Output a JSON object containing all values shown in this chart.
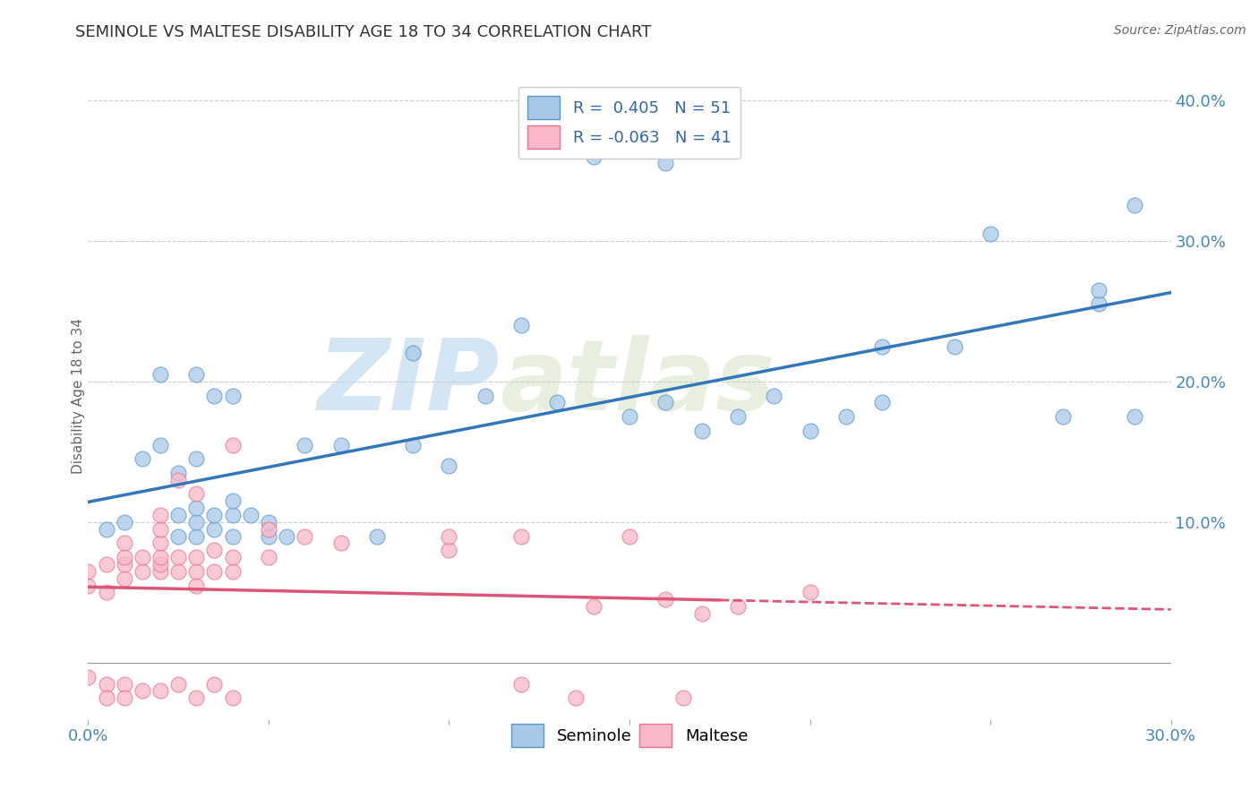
{
  "title": "SEMINOLE VS MALTESE DISABILITY AGE 18 TO 34 CORRELATION CHART",
  "source_text": "Source: ZipAtlas.com",
  "ylabel": "Disability Age 18 to 34",
  "xlim": [
    0.0,
    0.3
  ],
  "ylim": [
    -0.04,
    0.42
  ],
  "x_ticks": [
    0.0,
    0.05,
    0.1,
    0.15,
    0.2,
    0.25,
    0.3
  ],
  "x_tick_labels": [
    "0.0%",
    "",
    "",
    "",
    "",
    "",
    "30.0%"
  ],
  "y_ticks_right": [
    0.1,
    0.2,
    0.3,
    0.4
  ],
  "y_tick_labels_right": [
    "10.0%",
    "20.0%",
    "30.0%",
    "40.0%"
  ],
  "seminole_color": "#a8c8e8",
  "seminole_edge": "#5599cc",
  "maltese_color": "#f8b8c8",
  "maltese_edge": "#e87090",
  "seminole_R": 0.405,
  "seminole_N": 51,
  "maltese_R": -0.063,
  "maltese_N": 41,
  "trend_seminole_color": "#3377bb",
  "trend_maltese_color": "#dd5577",
  "grid_color": "#cccccc",
  "background_color": "#ffffff",
  "watermark_zip": "ZIP",
  "watermark_atlas": "atlas",
  "seminole_x": [
    0.005,
    0.01,
    0.015,
    0.02,
    0.02,
    0.025,
    0.025,
    0.025,
    0.03,
    0.03,
    0.03,
    0.03,
    0.03,
    0.035,
    0.035,
    0.035,
    0.04,
    0.04,
    0.04,
    0.04,
    0.045,
    0.05,
    0.05,
    0.055,
    0.06,
    0.07,
    0.08,
    0.09,
    0.09,
    0.1,
    0.11,
    0.12,
    0.13,
    0.14,
    0.15,
    0.16,
    0.16,
    0.17,
    0.18,
    0.19,
    0.2,
    0.21,
    0.22,
    0.22,
    0.24,
    0.25,
    0.27,
    0.28,
    0.28,
    0.29,
    0.29
  ],
  "seminole_y": [
    0.095,
    0.1,
    0.145,
    0.155,
    0.205,
    0.09,
    0.105,
    0.135,
    0.09,
    0.1,
    0.11,
    0.145,
    0.205,
    0.095,
    0.105,
    0.19,
    0.09,
    0.105,
    0.115,
    0.19,
    0.105,
    0.09,
    0.1,
    0.09,
    0.155,
    0.155,
    0.09,
    0.22,
    0.155,
    0.14,
    0.19,
    0.24,
    0.185,
    0.36,
    0.175,
    0.185,
    0.355,
    0.165,
    0.175,
    0.19,
    0.165,
    0.175,
    0.185,
    0.225,
    0.225,
    0.305,
    0.175,
    0.255,
    0.265,
    0.175,
    0.325
  ],
  "maltese_x": [
    0.0,
    0.0,
    0.005,
    0.005,
    0.01,
    0.01,
    0.01,
    0.01,
    0.015,
    0.015,
    0.02,
    0.02,
    0.02,
    0.02,
    0.02,
    0.02,
    0.025,
    0.025,
    0.025,
    0.03,
    0.03,
    0.03,
    0.03,
    0.035,
    0.035,
    0.04,
    0.04,
    0.04,
    0.05,
    0.05,
    0.06,
    0.07,
    0.1,
    0.1,
    0.12,
    0.14,
    0.15,
    0.16,
    0.17,
    0.18,
    0.2
  ],
  "maltese_y": [
    0.055,
    0.065,
    0.05,
    0.07,
    0.06,
    0.07,
    0.075,
    0.085,
    0.065,
    0.075,
    0.065,
    0.07,
    0.075,
    0.085,
    0.095,
    0.105,
    0.065,
    0.075,
    0.13,
    0.055,
    0.065,
    0.075,
    0.12,
    0.065,
    0.08,
    0.065,
    0.075,
    0.155,
    0.075,
    0.095,
    0.09,
    0.085,
    0.08,
    0.09,
    0.09,
    0.04,
    0.09,
    0.045,
    0.035,
    0.04,
    0.05
  ],
  "maltese_below_x": [
    0.0,
    0.005,
    0.005,
    0.01,
    0.01,
    0.015,
    0.02,
    0.025,
    0.03,
    0.035,
    0.04,
    0.12,
    0.135,
    0.165
  ],
  "maltese_below_y": [
    -0.01,
    -0.015,
    -0.025,
    -0.015,
    -0.025,
    -0.02,
    -0.02,
    -0.015,
    -0.025,
    -0.015,
    -0.025,
    -0.015,
    -0.025,
    -0.025
  ]
}
